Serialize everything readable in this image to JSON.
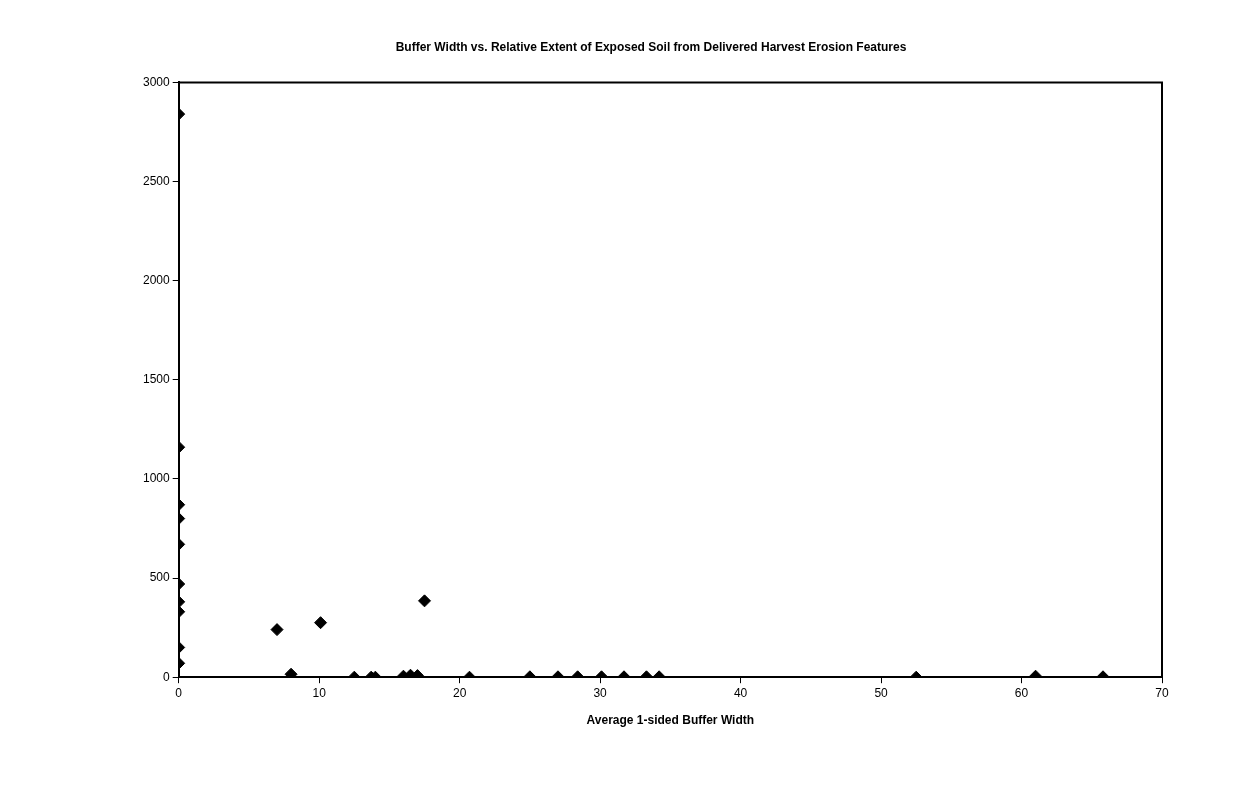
{
  "chart_data": {
    "type": "scatter",
    "title": "Buffer Width vs. Relative Extent of Exposed Soil from Delivered Harvest Erosion Features",
    "xlabel": "Average 1-sided Buffer Width",
    "x": [
      0,
      0,
      0,
      0,
      0,
      0,
      0,
      0,
      0,
      0,
      7,
      8,
      10.1,
      12.5,
      13.7,
      14,
      16,
      16.5,
      17,
      17.5,
      20.7,
      25,
      27,
      28.4,
      30.1,
      31.7,
      33.3,
      34.2,
      52.5,
      61,
      65.8
    ],
    "values": [
      2840,
      1160,
      870,
      800,
      670,
      470,
      380,
      330,
      150,
      70,
      240,
      15,
      275,
      0,
      0,
      0,
      5,
      10,
      8,
      385,
      0,
      2,
      2,
      2,
      2,
      2,
      2,
      2,
      0,
      5,
      2
    ],
    "color": "#000000",
    "marker": "diamond",
    "xlim": [
      0,
      70
    ],
    "xticks": [
      0,
      10,
      20,
      30,
      40,
      50,
      60,
      70
    ],
    "ylim": [
      0,
      3000
    ],
    "yticks": [
      0,
      500,
      1000,
      1500,
      2000,
      2500,
      3000
    ],
    "grid": false,
    "legend": false
  }
}
